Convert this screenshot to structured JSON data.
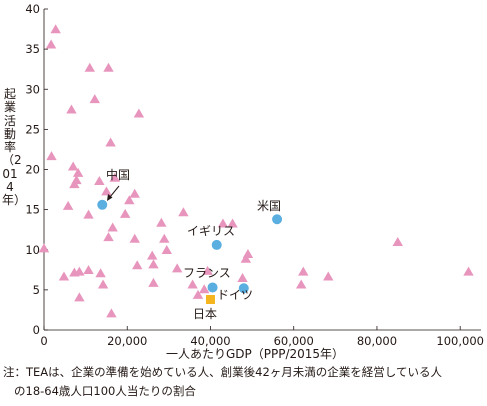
{
  "chart_data": {
    "type": "scatter",
    "xlabel": "一人あたりGDP（PPP/2015年）",
    "ylabel": "起業活動率（2014年）",
    "xlim": [
      0,
      105000
    ],
    "ylim": [
      0,
      40
    ],
    "x_ticks": [
      0,
      20000,
      40000,
      60000,
      80000,
      100000
    ],
    "x_tick_labels": [
      "0",
      "20,000",
      "40,000",
      "60,000",
      "80,000",
      "100,000"
    ],
    "y_ticks": [
      0,
      5,
      10,
      15,
      20,
      25,
      30,
      35,
      40
    ],
    "y_tick_labels": [
      "0",
      "5",
      "10",
      "15",
      "20",
      "25",
      "30",
      "35",
      "40"
    ],
    "grid": false,
    "series": [
      {
        "marker": "triangle",
        "color": "#e895bd",
        "points": [
          [
            2800,
            37.4
          ],
          [
            1700,
            35.5
          ],
          [
            11000,
            32.6
          ],
          [
            15500,
            32.6
          ],
          [
            12200,
            28.7
          ],
          [
            6600,
            27.4
          ],
          [
            22800,
            26.9
          ],
          [
            16000,
            23.3
          ],
          [
            1800,
            21.6
          ],
          [
            7000,
            20.3
          ],
          [
            8200,
            19.5
          ],
          [
            7800,
            18.6
          ],
          [
            7300,
            18.1
          ],
          [
            13300,
            18.5
          ],
          [
            17000,
            18.9
          ],
          [
            15000,
            17.2
          ],
          [
            21800,
            16.9
          ],
          [
            20500,
            16.1
          ],
          [
            5800,
            15.4
          ],
          [
            33500,
            14.6
          ],
          [
            10700,
            14.3
          ],
          [
            19500,
            14.4
          ],
          [
            28200,
            13.3
          ],
          [
            43000,
            13.2
          ],
          [
            45300,
            13.2
          ],
          [
            16500,
            12.7
          ],
          [
            15500,
            11.5
          ],
          [
            21800,
            11.3
          ],
          [
            28900,
            11.3
          ],
          [
            26000,
            9.2
          ],
          [
            29500,
            9.9
          ],
          [
            49000,
            9.4
          ],
          [
            48500,
            8.8
          ],
          [
            85000,
            10.9
          ],
          [
            0,
            10.1
          ],
          [
            4800,
            6.6
          ],
          [
            7300,
            7.1
          ],
          [
            8500,
            7.2
          ],
          [
            10700,
            7.4
          ],
          [
            13600,
            7.0
          ],
          [
            22400,
            8.0
          ],
          [
            26300,
            8.1
          ],
          [
            32000,
            7.6
          ],
          [
            39300,
            7.3
          ],
          [
            62300,
            7.2
          ],
          [
            68300,
            6.6
          ],
          [
            102000,
            7.2
          ],
          [
            14200,
            5.6
          ],
          [
            26300,
            5.8
          ],
          [
            47700,
            6.4
          ],
          [
            35700,
            5.6
          ],
          [
            38500,
            5.0
          ],
          [
            37000,
            4.3
          ],
          [
            61800,
            5.6
          ],
          [
            8500,
            4.0
          ],
          [
            16200,
            2.0
          ]
        ]
      },
      {
        "marker": "circle",
        "color": "#5aaee0",
        "points": [
          [
            14000,
            15.6
          ],
          [
            41500,
            10.6
          ],
          [
            56000,
            13.8
          ],
          [
            40500,
            5.3
          ],
          [
            48000,
            5.2
          ]
        ]
      },
      {
        "marker": "square",
        "color": "#f5b51f",
        "points": [
          [
            40000,
            3.8
          ]
        ]
      }
    ],
    "annotations": [
      "中国",
      "米国",
      "イギリス",
      "フランス",
      "ドイツ",
      "日本"
    ]
  },
  "note": {
    "line1": "注：TEAは、企業の準備を始めている人、創業後42ヶ月未満の企業を経営している人",
    "line2": "の18-64歳人口100人当たりの割合"
  }
}
